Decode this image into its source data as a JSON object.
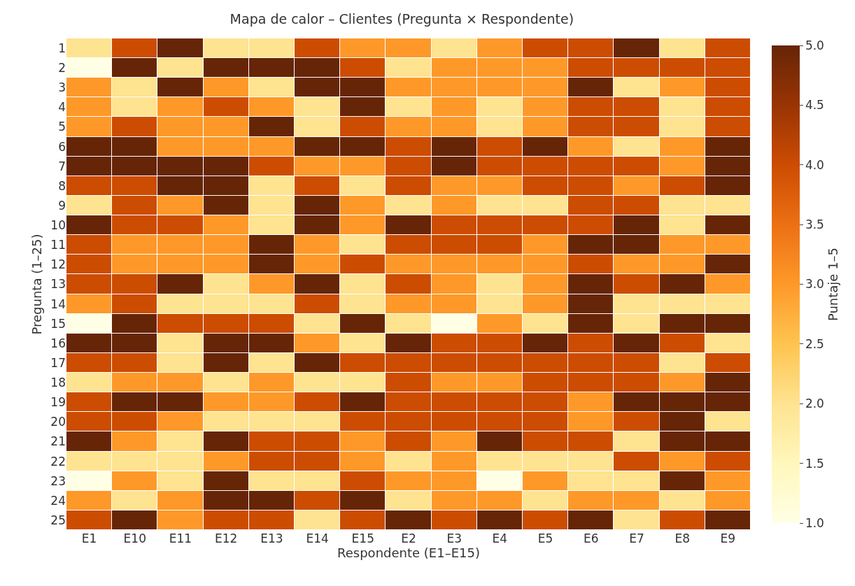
{
  "chart_data": {
    "type": "heatmap",
    "title": "Mapa de calor – Clientes (Pregunta × Respondente)",
    "xlabel": "Respondente (E1–E15)",
    "ylabel": "Pregunta (1–25)",
    "clabel": "Puntaje 1–5",
    "categories": [
      "E1",
      "E10",
      "E11",
      "E12",
      "E13",
      "E14",
      "E15",
      "E2",
      "E3",
      "E4",
      "E5",
      "E6",
      "E7",
      "E8",
      "E9"
    ],
    "y_categories": [
      "1",
      "2",
      "3",
      "4",
      "5",
      "6",
      "7",
      "8",
      "9",
      "10",
      "11",
      "12",
      "13",
      "14",
      "15",
      "16",
      "17",
      "18",
      "19",
      "20",
      "21",
      "22",
      "23",
      "24",
      "25"
    ],
    "clim": [
      1,
      5
    ],
    "cticks": [
      {
        "value": 1,
        "label": "1.0"
      },
      {
        "value": 1.5,
        "label": "1.5"
      },
      {
        "value": 2,
        "label": "2.0"
      },
      {
        "value": 2.5,
        "label": "2.5"
      },
      {
        "value": 3,
        "label": "3.0"
      },
      {
        "value": 3.5,
        "label": "3.5"
      },
      {
        "value": 4,
        "label": "4.0"
      },
      {
        "value": 4.5,
        "label": "4.5"
      },
      {
        "value": 5,
        "label": "5.0"
      }
    ],
    "cells": [
      [
        2,
        4,
        5,
        2,
        2,
        4,
        3,
        3,
        2,
        3,
        4,
        4,
        5,
        2,
        4
      ],
      [
        1,
        5,
        2,
        5,
        5,
        5,
        4,
        2,
        3,
        3,
        3,
        4,
        4,
        4,
        4
      ],
      [
        3,
        2,
        5,
        3,
        2,
        5,
        5,
        3,
        3,
        3,
        3,
        5,
        2,
        3,
        4
      ],
      [
        3,
        2,
        3,
        4,
        3,
        2,
        5,
        2,
        3,
        2,
        3,
        4,
        4,
        2,
        4
      ],
      [
        3,
        4,
        3,
        3,
        5,
        2,
        4,
        3,
        3,
        2,
        3,
        4,
        4,
        2,
        4
      ],
      [
        5,
        5,
        3,
        3,
        3,
        5,
        5,
        4,
        5,
        4,
        5,
        3,
        2,
        3,
        5
      ],
      [
        5,
        5,
        5,
        5,
        4,
        3,
        3,
        4,
        5,
        4,
        4,
        4,
        4,
        3,
        5
      ],
      [
        4,
        4,
        5,
        5,
        2,
        4,
        2,
        4,
        3,
        3,
        4,
        4,
        3,
        4,
        5
      ],
      [
        2,
        4,
        3,
        5,
        2,
        5,
        3,
        2,
        3,
        2,
        2,
        4,
        4,
        2,
        2
      ],
      [
        5,
        4,
        4,
        3,
        2,
        5,
        3,
        5,
        4,
        4,
        4,
        4,
        5,
        2,
        5
      ],
      [
        4,
        3,
        3,
        3,
        5,
        3,
        2,
        4,
        4,
        4,
        3,
        5,
        5,
        3,
        3
      ],
      [
        4,
        3,
        3,
        3,
        5,
        3,
        4,
        3,
        3,
        3,
        3,
        4,
        3,
        3,
        5
      ],
      [
        4,
        4,
        5,
        2,
        3,
        5,
        2,
        4,
        3,
        2,
        3,
        5,
        4,
        5,
        3
      ],
      [
        3,
        4,
        2,
        2,
        2,
        4,
        2,
        3,
        3,
        2,
        3,
        5,
        2,
        2,
        2
      ],
      [
        1,
        5,
        4,
        4,
        4,
        2,
        5,
        2,
        1,
        3,
        2,
        5,
        2,
        5,
        5
      ],
      [
        5,
        5,
        2,
        5,
        5,
        3,
        2,
        5,
        4,
        4,
        5,
        4,
        5,
        4,
        2
      ],
      [
        4,
        4,
        2,
        5,
        2,
        5,
        4,
        4,
        4,
        4,
        4,
        4,
        4,
        2,
        4
      ],
      [
        2,
        3,
        3,
        2,
        3,
        2,
        2,
        4,
        3,
        3,
        4,
        4,
        4,
        3,
        5
      ],
      [
        4,
        5,
        5,
        3,
        3,
        4,
        5,
        4,
        4,
        4,
        4,
        3,
        5,
        5,
        5
      ],
      [
        4,
        4,
        3,
        2,
        2,
        2,
        4,
        4,
        4,
        4,
        4,
        3,
        4,
        5,
        2
      ],
      [
        5,
        3,
        2,
        5,
        4,
        4,
        3,
        4,
        3,
        5,
        4,
        4,
        2,
        5,
        5
      ],
      [
        2,
        2,
        2,
        3,
        4,
        4,
        3,
        2,
        3,
        2,
        2,
        2,
        4,
        3,
        4
      ],
      [
        1,
        3,
        2,
        5,
        2,
        2,
        4,
        3,
        3,
        1,
        3,
        2,
        2,
        5,
        3
      ],
      [
        3,
        2,
        3,
        5,
        5,
        4,
        5,
        2,
        3,
        3,
        2,
        3,
        3,
        2,
        3
      ],
      [
        4,
        5,
        3,
        4,
        4,
        2,
        4,
        5,
        4,
        5,
        4,
        5,
        2,
        4,
        5
      ]
    ]
  }
}
